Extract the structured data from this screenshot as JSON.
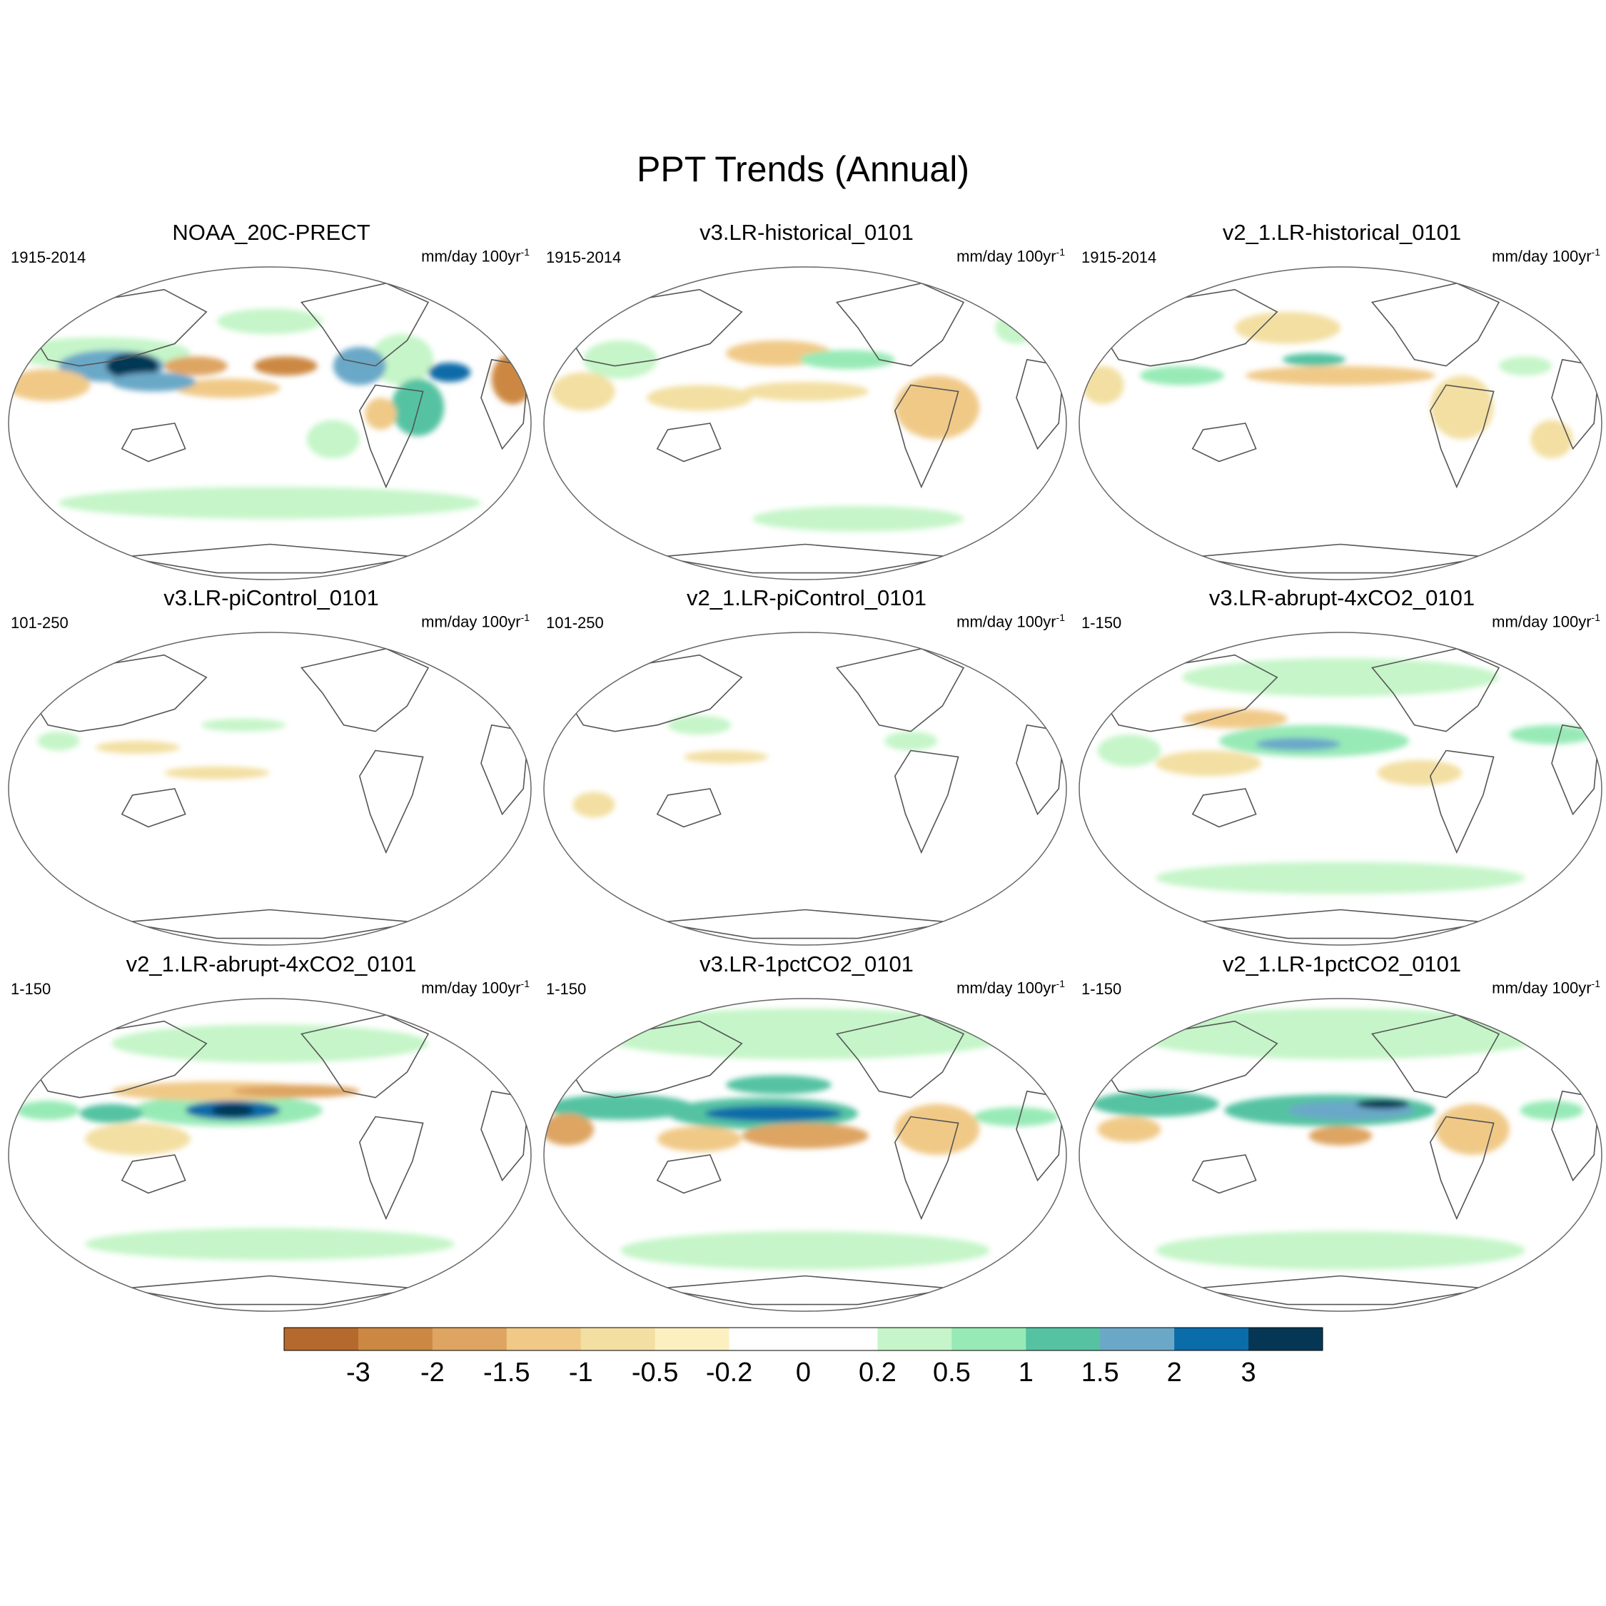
{
  "title": "PPT Trends (Annual)",
  "units_text": "mm/day 100yr",
  "units_exp": "-1",
  "panels": [
    {
      "title": "NOAA_20C-PRECT",
      "period": "1915-2014"
    },
    {
      "title": "v3.LR-historical_0101",
      "period": "1915-2014"
    },
    {
      "title": "v2_1.LR-historical_0101",
      "period": "1915-2014"
    },
    {
      "title": "v3.LR-piControl_0101",
      "period": "101-250"
    },
    {
      "title": "v2_1.LR-piControl_0101",
      "period": "101-250"
    },
    {
      "title": "v3.LR-abrupt-4xCO2_0101",
      "period": "1-150"
    },
    {
      "title": "v2_1.LR-abrupt-4xCO2_0101",
      "period": "1-150"
    },
    {
      "title": "v3.LR-1pctCO2_0101",
      "period": "1-150"
    },
    {
      "title": "v2_1.LR-1pctCO2_0101",
      "period": "1-150"
    }
  ],
  "colorbar": {
    "levels": [
      "-3",
      "-2",
      "-1.5",
      "-1",
      "-0.5",
      "-0.2",
      "0",
      "0.2",
      "0.5",
      "1",
      "1.5",
      "2",
      "3"
    ],
    "colors": [
      "#b5692c",
      "#cc8843",
      "#dea462",
      "#f0c987",
      "#f3dfa2",
      "#fcf0c1",
      "#ffffff",
      "#ffffff",
      "#c5f5c8",
      "#97eab6",
      "#55c3a2",
      "#6ba8c8",
      "#0a6ca8",
      "#053755"
    ]
  }
}
